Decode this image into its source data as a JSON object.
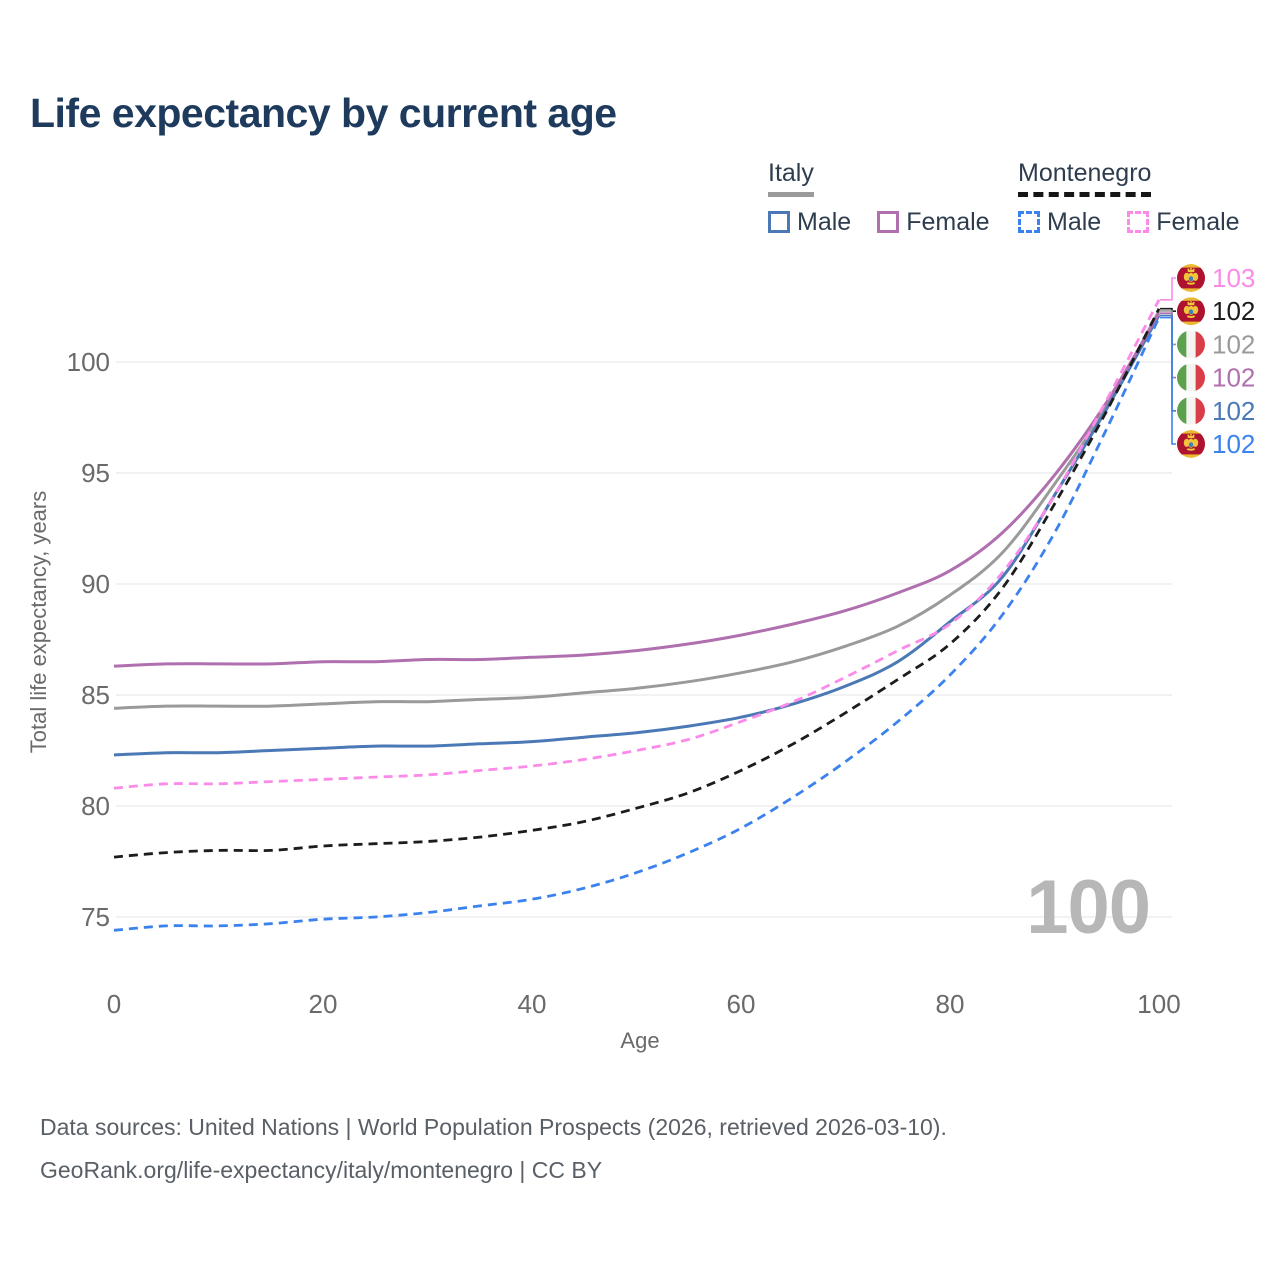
{
  "title": "Life expectancy by current age",
  "legend": {
    "groups": [
      {
        "country": "Italy",
        "line_style": "solid",
        "underline_color": "#9a9a9a",
        "items": [
          {
            "label": "Male",
            "color": "#4a79b5"
          },
          {
            "label": "Female",
            "color": "#b06fae"
          }
        ]
      },
      {
        "country": "Montenegro",
        "line_style": "dashed",
        "underline_color": "#161616",
        "items": [
          {
            "label": "Male",
            "color": "#3b82ee"
          },
          {
            "label": "Female",
            "color": "#fb8ae8"
          }
        ]
      }
    ]
  },
  "watermark": "100",
  "footer": {
    "line1": "Data sources: United Nations | World Population Prospects (2026, retrieved 2026-03-10).",
    "line2": "GeoRank.org/life-expectancy/italy/montenegro | CC BY"
  },
  "chart_data": {
    "type": "line",
    "title": "Life expectancy by current age",
    "xlabel": "Age",
    "ylabel": "Total life expectancy, years",
    "x_ticks": [
      0,
      20,
      40,
      60,
      80,
      100
    ],
    "y_ticks": [
      75,
      80,
      85,
      90,
      95,
      100
    ],
    "xlim": [
      0,
      100
    ],
    "ylim": [
      72.5,
      103.5
    ],
    "grid": "horizontal",
    "grid_color": "#e9e9e9",
    "x": [
      0,
      5,
      10,
      15,
      20,
      25,
      30,
      35,
      40,
      45,
      50,
      55,
      60,
      65,
      70,
      75,
      80,
      85,
      90,
      95,
      100
    ],
    "series": [
      {
        "id": "italy-total",
        "name": "Italy Total",
        "country": "Italy",
        "flag": "italy",
        "color": "#9a9a9a",
        "dashed": false,
        "end_label": "102",
        "values": [
          84.4,
          84.5,
          84.5,
          84.5,
          84.6,
          84.7,
          84.7,
          84.8,
          84.9,
          85.1,
          85.3,
          85.6,
          86.0,
          86.5,
          87.2,
          88.1,
          89.5,
          91.4,
          94.5,
          98.0,
          102.3
        ]
      },
      {
        "id": "italy-male",
        "name": "Italy Male",
        "country": "Italy",
        "flag": "italy",
        "color": "#4a79b5",
        "dashed": false,
        "end_label": "102",
        "values": [
          82.3,
          82.4,
          82.4,
          82.5,
          82.6,
          82.7,
          82.7,
          82.8,
          82.9,
          83.1,
          83.3,
          83.6,
          84.0,
          84.6,
          85.4,
          86.5,
          88.3,
          90.3,
          94.0,
          97.9,
          102.1
        ]
      },
      {
        "id": "italy-female",
        "name": "Italy Female",
        "country": "Italy",
        "flag": "italy",
        "color": "#b06fae",
        "dashed": false,
        "end_label": "102",
        "values": [
          86.3,
          86.4,
          86.4,
          86.4,
          86.5,
          86.5,
          86.6,
          86.6,
          86.7,
          86.8,
          87.0,
          87.3,
          87.7,
          88.2,
          88.8,
          89.6,
          90.6,
          92.3,
          94.9,
          98.2,
          102.2
        ]
      },
      {
        "id": "montenegro-male",
        "name": "Montenegro Male",
        "country": "Montenegro",
        "flag": "montenegro",
        "color": "#3b82ee",
        "dashed": true,
        "end_label": "102",
        "values": [
          74.4,
          74.6,
          74.6,
          74.7,
          74.9,
          75.0,
          75.2,
          75.5,
          75.8,
          76.3,
          77.0,
          77.9,
          79.0,
          80.4,
          82.0,
          83.8,
          85.9,
          88.6,
          92.3,
          97.0,
          102.0
        ]
      },
      {
        "id": "montenegro-total",
        "name": "Montenegro Total",
        "country": "Montenegro",
        "flag": "montenegro",
        "color": "#1c1c1c",
        "dashed": true,
        "end_label": "102",
        "values": [
          77.7,
          77.9,
          78.0,
          78.0,
          78.2,
          78.3,
          78.4,
          78.6,
          78.9,
          79.3,
          79.9,
          80.6,
          81.6,
          82.8,
          84.2,
          85.7,
          87.3,
          89.8,
          93.6,
          97.8,
          102.4
        ]
      },
      {
        "id": "montenegro-female",
        "name": "Montenegro Female",
        "country": "Montenegro",
        "flag": "montenegro",
        "color": "#fb8ae8",
        "dashed": true,
        "end_label": "103",
        "values": [
          80.8,
          81.0,
          81.0,
          81.1,
          81.2,
          81.3,
          81.4,
          81.6,
          81.8,
          82.1,
          82.5,
          83.0,
          83.8,
          84.7,
          85.8,
          87.0,
          88.2,
          90.5,
          94.0,
          98.3,
          102.8
        ]
      }
    ]
  }
}
